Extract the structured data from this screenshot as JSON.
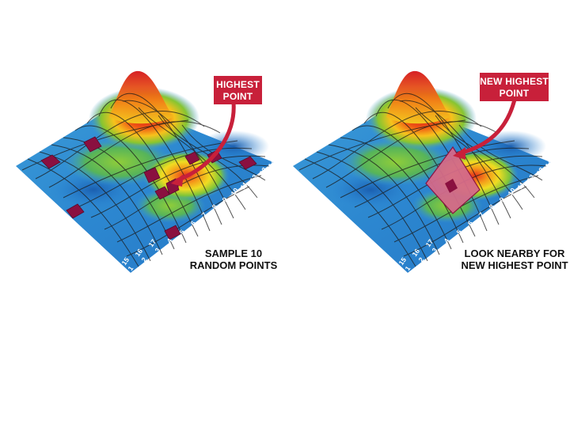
{
  "left_panel": {
    "callout": [
      "HIGHEST",
      "POINT"
    ],
    "caption": [
      "SAMPLE 10",
      "RANDOM POINTS"
    ],
    "axis_front": [
      "1",
      "2",
      "3",
      "4",
      "5",
      "6",
      "7",
      "8",
      "9",
      "10",
      "11",
      "12",
      "13",
      "14"
    ],
    "axis_left": [
      "15",
      "16",
      "17"
    ]
  },
  "right_panel": {
    "callout": [
      "NEW HIGHEST",
      "POINT"
    ],
    "caption": [
      "LOOK NEARBY FOR",
      "NEW HIGHEST POINT"
    ],
    "axis_front": [
      "1",
      "2",
      "3",
      "4",
      "5",
      "6",
      "7",
      "8",
      "9",
      "10",
      "11",
      "12",
      "13",
      "14"
    ],
    "axis_left": [
      "15",
      "16",
      "17"
    ]
  },
  "colors": {
    "callout_fill": "#c8203a",
    "sample_point": "#8a1040",
    "highlight_patch": "#d46a8a",
    "low": "#2a86d6",
    "mid": "#6cc23a",
    "high": "#f7d21c",
    "peak": "#e22a1a"
  }
}
